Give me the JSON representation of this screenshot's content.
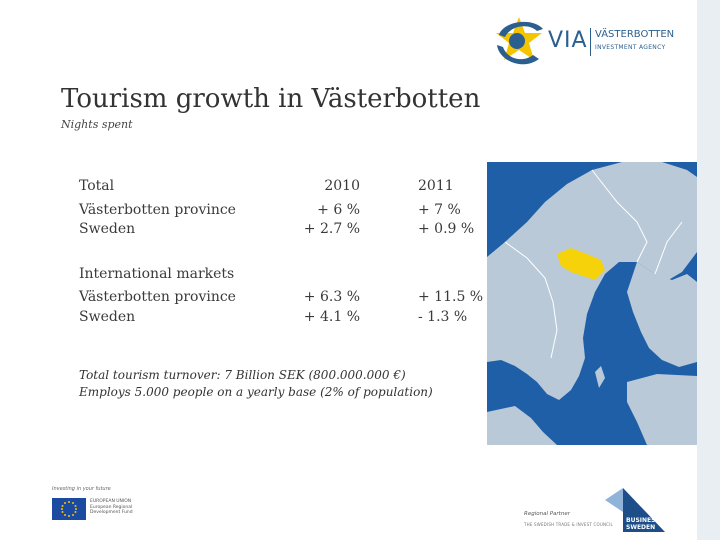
{
  "logo": {
    "acronym": "VIA",
    "name": "VÄSTERBOTTEN",
    "tagline": "INVESTMENT AGENCY"
  },
  "slide": {
    "title": "Tourism growth in Västerbotten",
    "subtitle": "Nights spent"
  },
  "table": {
    "section1": {
      "header": "Total",
      "col1_header": "2010",
      "col2_header": "2011",
      "rows": [
        {
          "label": "Västerbotten province",
          "v2010": "+ 6 %",
          "v2011": "+ 7 %"
        },
        {
          "label": "Sweden",
          "v2010": "+ 2.7 %",
          "v2011": "+ 0.9 %"
        }
      ]
    },
    "section2": {
      "header": "International markets",
      "rows": [
        {
          "label": "Västerbotten province",
          "v2010": "+ 6.3 %",
          "v2011": "+ 11.5 %"
        },
        {
          "label": "Sweden",
          "v2010": "+ 4.1 %",
          "v2011": "- 1.3 %"
        }
      ]
    }
  },
  "notes": {
    "line1": "Total tourism turnover: 7 Billion SEK (800.000.000 €)",
    "line2": "Employs 5.000 people on a yearly base (2% of population)"
  },
  "footer": {
    "eu_tagline": "Investing in your future",
    "eu_text": "EUROPEAN UNION European Regional Development Fund",
    "regional_partner": "Regional Partner",
    "regional_partner_sub": "THE SWEDISH TRADE & INVEST COUNCIL",
    "business_sweden": "BUSINESS SWEDEN"
  },
  "colors": {
    "brand_blue": "#2a5f8f",
    "star_yellow": "#f5c400",
    "map_water": "#1f5fa8",
    "map_land": "#b9c9d8",
    "highlight": "#f5d20a"
  }
}
